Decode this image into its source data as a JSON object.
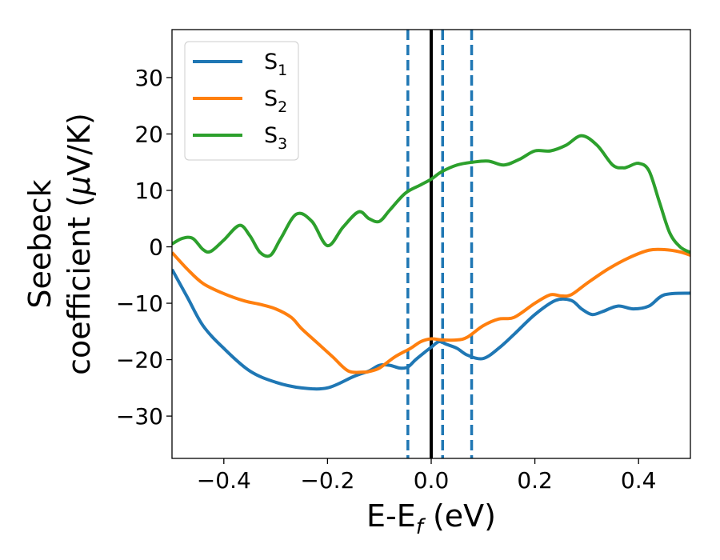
{
  "chart_data": {
    "type": "line",
    "xlabel": {
      "main": "E-E",
      "sub": "f",
      "rest": " (eV)"
    },
    "ylabel": {
      "line1": "Seebeck",
      "line2_pre": "coefficient  (",
      "mu": "μ",
      "line2_post": "V/K)"
    },
    "xlim": [
      -0.5,
      0.5
    ],
    "ylim": [
      -37.5,
      38.5
    ],
    "xticks": [
      -0.4,
      -0.2,
      0.0,
      0.2,
      0.4
    ],
    "xtick_labels": [
      "−0.4",
      "−0.2",
      "0.0",
      "0.2",
      "0.4"
    ],
    "yticks": [
      -30,
      -20,
      -10,
      0,
      10,
      20,
      30
    ],
    "ytick_labels": [
      "−30",
      "−20",
      "−10",
      "0",
      "10",
      "20",
      "30"
    ],
    "grid": false,
    "legend_position": "top-left",
    "vlines": [
      {
        "x": 0.0,
        "style": "solid",
        "color": "#000000"
      },
      {
        "x": -0.045,
        "style": "dashed",
        "color": "#1f77b4"
      },
      {
        "x": 0.022,
        "style": "dashed",
        "color": "#1f77b4"
      },
      {
        "x": 0.078,
        "style": "dashed",
        "color": "#1f77b4"
      }
    ],
    "series": [
      {
        "name": "S",
        "sub": "1",
        "color": "#1f77b4",
        "x": [
          -0.5,
          -0.47,
          -0.44,
          -0.4,
          -0.35,
          -0.3,
          -0.25,
          -0.2,
          -0.15,
          -0.12,
          -0.1,
          -0.08,
          -0.06,
          -0.045,
          -0.03,
          -0.01,
          0.0,
          0.015,
          0.03,
          0.05,
          0.07,
          0.1,
          0.13,
          0.16,
          0.2,
          0.24,
          0.27,
          0.29,
          0.31,
          0.33,
          0.36,
          0.39,
          0.42,
          0.45,
          0.5
        ],
        "y": [
          -4,
          -9,
          -14,
          -18,
          -22,
          -24,
          -25,
          -25,
          -23,
          -22,
          -21,
          -21,
          -21.5,
          -21.3,
          -20,
          -18.5,
          -17.8,
          -16.8,
          -17.3,
          -18,
          -19.2,
          -19.8,
          -18,
          -15.5,
          -12,
          -9.5,
          -9.5,
          -11,
          -12,
          -11.5,
          -10.5,
          -11,
          -10.5,
          -8.5,
          -8.2
        ]
      },
      {
        "name": "S",
        "sub": "2",
        "color": "#ff7f0e",
        "x": [
          -0.5,
          -0.47,
          -0.44,
          -0.4,
          -0.36,
          -0.33,
          -0.3,
          -0.27,
          -0.25,
          -0.22,
          -0.19,
          -0.16,
          -0.13,
          -0.12,
          -0.1,
          -0.07,
          -0.04,
          -0.02,
          0.0,
          0.02,
          0.05,
          0.07,
          0.1,
          0.13,
          0.16,
          0.2,
          0.23,
          0.25,
          0.27,
          0.3,
          0.34,
          0.38,
          0.42,
          0.45,
          0.48,
          0.5
        ],
        "y": [
          -1,
          -4,
          -6.5,
          -8.3,
          -9.6,
          -10.2,
          -11,
          -12.5,
          -14.5,
          -17,
          -19.5,
          -22,
          -22.2,
          -22.1,
          -21.5,
          -19.5,
          -18,
          -16.8,
          -16.3,
          -16.5,
          -16.5,
          -16,
          -14,
          -12.8,
          -12.5,
          -10,
          -8.5,
          -8.7,
          -8.5,
          -6.5,
          -4,
          -2,
          -0.6,
          -0.5,
          -0.9,
          -1.5
        ]
      },
      {
        "name": "S",
        "sub": "3",
        "color": "#2ca02c",
        "x": [
          -0.5,
          -0.48,
          -0.46,
          -0.44,
          -0.425,
          -0.4,
          -0.37,
          -0.35,
          -0.33,
          -0.31,
          -0.29,
          -0.26,
          -0.23,
          -0.2,
          -0.17,
          -0.14,
          -0.12,
          -0.1,
          -0.08,
          -0.05,
          -0.02,
          0.0,
          0.02,
          0.05,
          0.08,
          0.11,
          0.14,
          0.17,
          0.2,
          0.23,
          0.26,
          0.29,
          0.32,
          0.35,
          0.37,
          0.38,
          0.4,
          0.42,
          0.44,
          0.46,
          0.48,
          0.5
        ],
        "y": [
          0.5,
          1.5,
          1.5,
          -0.5,
          -0.8,
          1.2,
          3.8,
          2.0,
          -1.0,
          -1.5,
          1.5,
          5.8,
          4.5,
          0.2,
          3.5,
          6.2,
          5.0,
          4.5,
          6.5,
          9.5,
          11.0,
          12.0,
          13.3,
          14.5,
          15.0,
          15.2,
          14.5,
          15.5,
          17.0,
          17.0,
          18.0,
          19.7,
          18.0,
          14.5,
          14.0,
          14.2,
          14.8,
          13.5,
          8.0,
          2.5,
          0.0,
          -1.0
        ]
      }
    ]
  }
}
